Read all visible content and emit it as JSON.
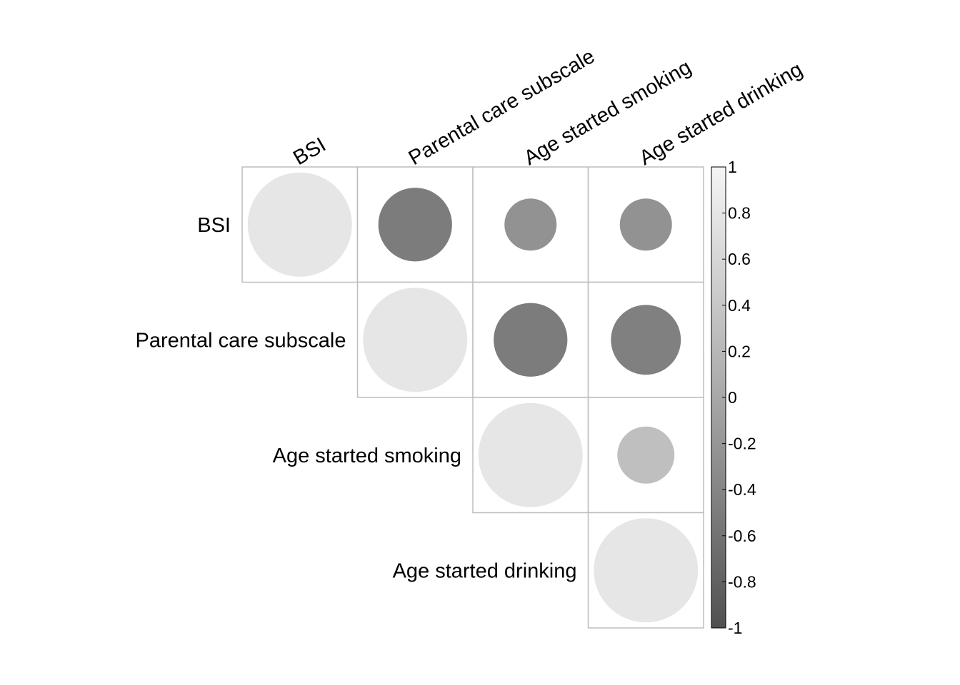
{
  "chart_data": {
    "type": "heatmap",
    "subtype": "correlation-matrix-circles",
    "layout": "upper-triangle",
    "variables": [
      "BSI",
      "Parental care subscale",
      "Age started smoking",
      "Age started drinking"
    ],
    "matrix": [
      [
        1.0,
        -0.5,
        -0.25,
        -0.25
      ],
      [
        -0.5,
        1.0,
        -0.5,
        -0.45
      ],
      [
        -0.25,
        -0.5,
        1.0,
        0.3
      ],
      [
        -0.25,
        -0.45,
        0.3,
        1.0
      ]
    ],
    "colorbar": {
      "ticks": [
        "1",
        "0.8",
        "0.6",
        "0.4",
        "0.2",
        "0",
        "-0.2",
        "-0.4",
        "-0.6",
        "-0.8",
        "-1"
      ],
      "range": [
        -1,
        1
      ],
      "color_low": "#505050",
      "color_mid": "#a8a8a8",
      "color_high": "#f5f5f5"
    },
    "grid": true,
    "grid_color": "#bebebe",
    "legend_position": "right"
  }
}
